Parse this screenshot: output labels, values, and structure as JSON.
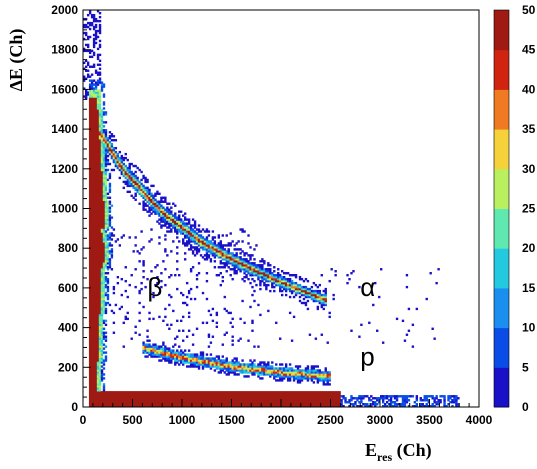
{
  "chart_data": {
    "type": "heatmap",
    "title": "",
    "xlabel_main": "E",
    "xlabel_sub": "res",
    "xlabel_unit": " (Ch)",
    "ylabel": "ΔE (Ch)",
    "xlim": [
      0,
      4000
    ],
    "ylim": [
      0,
      2000
    ],
    "x_ticks": [
      0,
      500,
      1000,
      1500,
      2000,
      2500,
      3000,
      3500,
      4000
    ],
    "y_ticks": [
      0,
      200,
      400,
      600,
      800,
      1000,
      1200,
      1400,
      1600,
      1800,
      2000
    ],
    "colorbar": {
      "range": [
        0,
        50
      ],
      "ticks": [
        0,
        5,
        10,
        15,
        20,
        25,
        30,
        35,
        40,
        45,
        50
      ],
      "colors": [
        "#ffffff",
        "#1a10c8",
        "#0a4de6",
        "#1b8fef",
        "#22c9df",
        "#5fe8b0",
        "#b8f060",
        "#f5d23a",
        "#f07a22",
        "#d02410",
        "#9e1a12"
      ]
    },
    "annotations": [
      {
        "text": "β",
        "x": 650,
        "y": 560
      },
      {
        "text": "α",
        "x": 2800,
        "y": 560
      },
      {
        "text": "p",
        "x": 2800,
        "y": 210
      }
    ],
    "bands": [
      {
        "name": "beta",
        "points": [
          [
            150,
            1500
          ],
          [
            200,
            1200
          ],
          [
            280,
            900
          ],
          [
            380,
            750
          ],
          [
            330,
            650
          ],
          [
            200,
            550
          ],
          [
            150,
            300
          ],
          [
            120,
            100
          ]
        ]
      },
      {
        "name": "alpha",
        "points": [
          [
            150,
            1400
          ],
          [
            400,
            1200
          ],
          [
            800,
            980
          ],
          [
            1200,
            830
          ],
          [
            1600,
            720
          ],
          [
            2000,
            630
          ],
          [
            2300,
            570
          ],
          [
            2450,
            540
          ]
        ]
      },
      {
        "name": "proton",
        "points": [
          [
            600,
            300
          ],
          [
            1000,
            250
          ],
          [
            1500,
            205
          ],
          [
            2000,
            175
          ],
          [
            2500,
            155
          ]
        ]
      }
    ]
  }
}
